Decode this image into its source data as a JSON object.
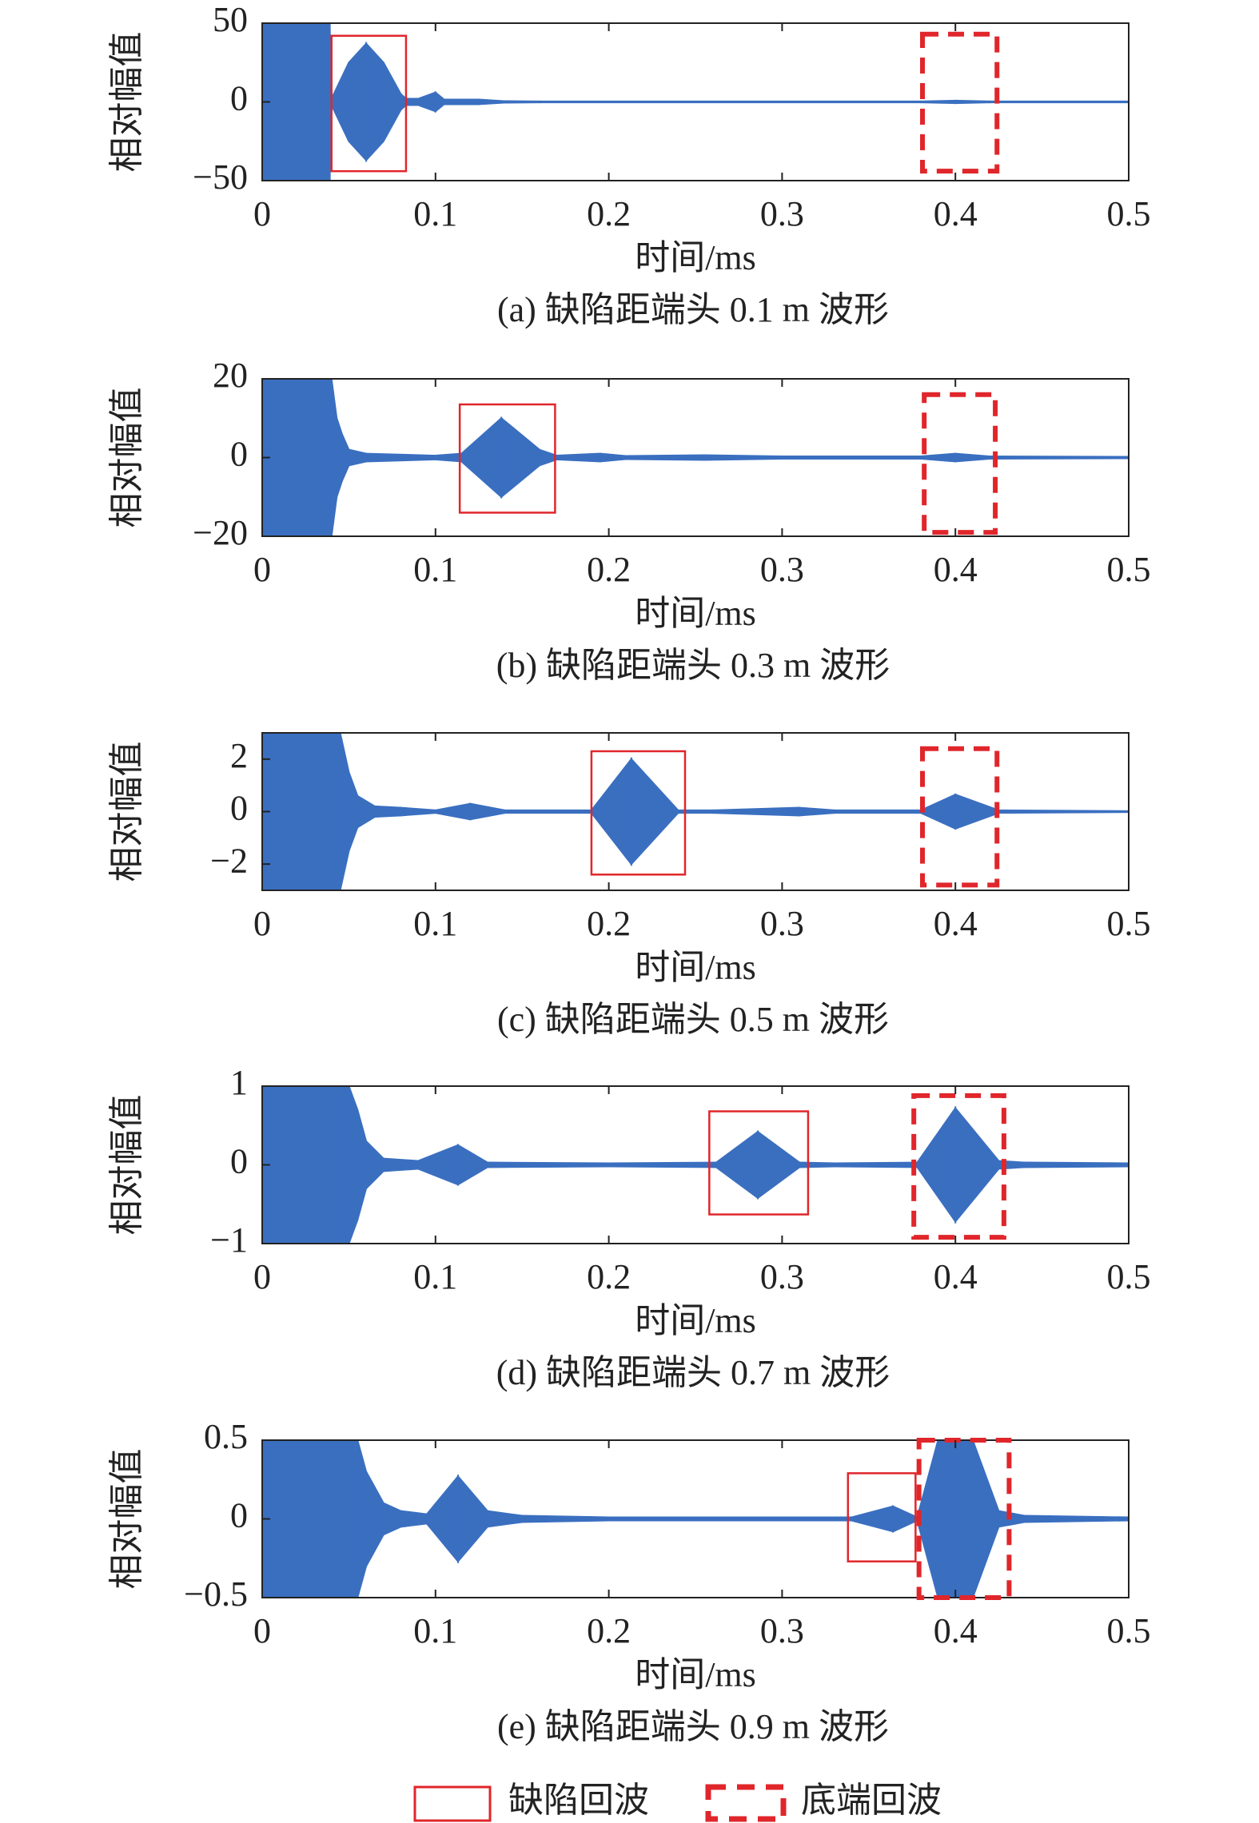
{
  "chart_data": [
    {
      "type": "area",
      "title": "(a) 缺陷距端头 0.1 m 波形",
      "xlabel": "时间/ms",
      "ylabel": "相对幅值",
      "color": "#3a6fc0",
      "xlim": [
        0,
        0.5
      ],
      "xticks": [
        0,
        0.1,
        0.2,
        0.3,
        0.4,
        0.5
      ],
      "ylim": [
        -50,
        50
      ],
      "yticks": [
        {
          "value": -50,
          "label": "−50"
        },
        0,
        50
      ],
      "x": [
        0,
        0.039,
        0.0395,
        0.04,
        0.05,
        0.06,
        0.07,
        0.08,
        0.083,
        0.09,
        0.1,
        0.105,
        0.11,
        0.125,
        0.14,
        0.16,
        0.38,
        0.4,
        0.42,
        0.5
      ],
      "values": [
        50,
        50,
        2,
        2,
        25,
        37,
        25,
        5,
        2,
        2,
        6,
        1.5,
        1.5,
        1.5,
        0.5,
        0.3,
        0.3,
        0.8,
        0.3,
        0.3
      ],
      "defect_box": {
        "xlim": [
          0.04,
          0.083
        ],
        "ylim": [
          -44,
          42
        ]
      },
      "end_box": {
        "xlim": [
          0.381,
          0.424
        ],
        "ylim": [
          -44,
          43
        ]
      }
    },
    {
      "type": "area",
      "title": "(b) 缺陷距端头 0.3 m 波形",
      "xlabel": "时间/ms",
      "ylabel": "相对幅值",
      "color": "#3a6fc0",
      "xlim": [
        0,
        0.5
      ],
      "xticks": [
        0,
        0.1,
        0.2,
        0.3,
        0.4,
        0.5
      ],
      "ylim": [
        -20,
        20
      ],
      "yticks": [
        {
          "value": -20,
          "label": "−20"
        },
        0,
        20
      ],
      "x": [
        0,
        0.04,
        0.043,
        0.046,
        0.05,
        0.06,
        0.1,
        0.115,
        0.138,
        0.16,
        0.17,
        0.195,
        0.21,
        0.255,
        0.3,
        0.38,
        0.4,
        0.42,
        0.5
      ],
      "values": [
        20,
        20,
        10,
        6,
        2,
        1,
        0.5,
        1,
        10,
        2,
        0.5,
        1,
        0.4,
        0.6,
        0.3,
        0.3,
        1,
        0.3,
        0.2
      ],
      "defect_box": {
        "xlim": [
          0.114,
          0.169
        ],
        "ylim": [
          -14,
          13.5
        ]
      },
      "end_box": {
        "xlim": [
          0.382,
          0.423
        ],
        "ylim": [
          -19,
          16
        ]
      }
    },
    {
      "type": "area",
      "title": "(c) 缺陷距端头 0.5 m 波形",
      "xlabel": "时间/ms",
      "ylabel": "相对幅值",
      "color": "#3a6fc0",
      "xlim": [
        0,
        0.5
      ],
      "xticks": [
        0,
        0.1,
        0.2,
        0.3,
        0.4,
        0.5
      ],
      "ylim": [
        -3,
        3
      ],
      "yticks": [
        {
          "value": -2,
          "label": "−2"
        },
        0,
        2
      ],
      "x": [
        0,
        0.045,
        0.05,
        0.055,
        0.065,
        0.08,
        0.1,
        0.12,
        0.14,
        0.19,
        0.213,
        0.24,
        0.26,
        0.31,
        0.33,
        0.38,
        0.4,
        0.425,
        0.5
      ],
      "values": [
        3,
        3,
        1.5,
        0.6,
        0.2,
        0.15,
        0.05,
        0.3,
        0.05,
        0.05,
        2,
        0.05,
        0.05,
        0.15,
        0.05,
        0.05,
        0.65,
        0.05,
        0.02
      ],
      "defect_box": {
        "xlim": [
          0.19,
          0.244
        ],
        "ylim": [
          -2.4,
          2.3
        ]
      },
      "end_box": {
        "xlim": [
          0.381,
          0.424
        ],
        "ylim": [
          -2.8,
          2.4
        ]
      }
    },
    {
      "type": "area",
      "title": "(d) 缺陷距端头 0.7 m 波形",
      "xlabel": "时间/ms",
      "ylabel": "相对幅值",
      "color": "#3a6fc0",
      "xlim": [
        0,
        0.5
      ],
      "xticks": [
        0,
        0.1,
        0.2,
        0.3,
        0.4,
        0.5
      ],
      "ylim": [
        -1,
        1
      ],
      "yticks": [
        {
          "value": -1,
          "label": "−1"
        },
        0,
        1
      ],
      "x": [
        0,
        0.05,
        0.055,
        0.06,
        0.07,
        0.09,
        0.113,
        0.13,
        0.2,
        0.262,
        0.286,
        0.31,
        0.33,
        0.378,
        0.4,
        0.425,
        0.44,
        0.5
      ],
      "values": [
        1,
        1,
        0.7,
        0.3,
        0.08,
        0.05,
        0.25,
        0.03,
        0.02,
        0.03,
        0.42,
        0.03,
        0.02,
        0.03,
        0.72,
        0.05,
        0.03,
        0.02
      ],
      "defect_box": {
        "xlim": [
          0.258,
          0.315
        ],
        "ylim": [
          -0.63,
          0.68
        ]
      },
      "end_box": {
        "xlim": [
          0.376,
          0.428
        ],
        "ylim": [
          -0.92,
          0.88
        ]
      }
    },
    {
      "type": "area",
      "title": "(e) 缺陷距端头 0.9 m 波形",
      "xlabel": "时间/ms",
      "ylabel": "相对幅值",
      "color": "#3a6fc0",
      "xlim": [
        0,
        0.5
      ],
      "xticks": [
        0,
        0.1,
        0.2,
        0.3,
        0.4,
        0.5
      ],
      "ylim": [
        -0.5,
        0.5
      ],
      "yticks": [
        {
          "value": -0.5,
          "label": "−0.5"
        },
        0,
        0.5
      ],
      "x": [
        0,
        0.055,
        0.06,
        0.07,
        0.08,
        0.095,
        0.113,
        0.13,
        0.15,
        0.2,
        0.3,
        0.34,
        0.364,
        0.378,
        0.39,
        0.4,
        0.41,
        0.425,
        0.44,
        0.5
      ],
      "values": [
        0.5,
        0.5,
        0.3,
        0.1,
        0.05,
        0.03,
        0.27,
        0.05,
        0.02,
        0.01,
        0.01,
        0.01,
        0.08,
        0.01,
        0.5,
        0.5,
        0.5,
        0.05,
        0.02,
        0.01
      ],
      "defect_box": {
        "xlim": [
          0.338,
          0.377
        ],
        "ylim": [
          -0.27,
          0.29
        ]
      },
      "end_box": {
        "xlim": [
          0.379,
          0.431
        ],
        "ylim": [
          -0.5,
          0.5
        ]
      }
    }
  ],
  "legend": {
    "defect": "缺陷回波",
    "end": "底端回波",
    "color": "#e0262b"
  }
}
